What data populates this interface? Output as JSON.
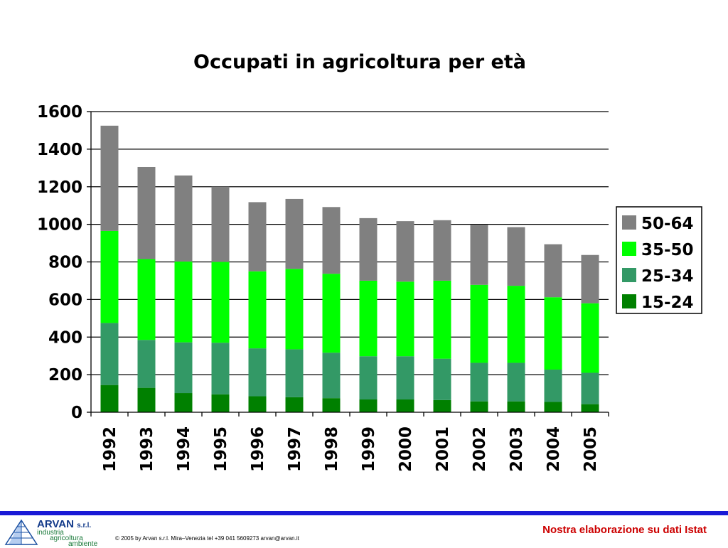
{
  "chart_data": {
    "type": "bar",
    "stacked": true,
    "title": "Occupati in agricoltura per età",
    "categories": [
      "1992",
      "1993",
      "1994",
      "1995",
      "1996",
      "1997",
      "1998",
      "1999",
      "2000",
      "2001",
      "2002",
      "2003",
      "2004",
      "2005"
    ],
    "series": [
      {
        "name": "15-24",
        "color": "#008000",
        "values": [
          145,
          130,
          102,
          95,
          85,
          80,
          75,
          68,
          68,
          65,
          58,
          58,
          55,
          43
        ]
      },
      {
        "name": "25-34",
        "color": "#339966",
        "values": [
          330,
          255,
          270,
          275,
          255,
          255,
          242,
          230,
          230,
          220,
          205,
          205,
          172,
          167
        ]
      },
      {
        "name": "35-50",
        "color": "#00ff00",
        "values": [
          490,
          430,
          430,
          430,
          410,
          428,
          420,
          402,
          397,
          415,
          415,
          410,
          385,
          370
        ]
      },
      {
        "name": "50-64",
        "color": "#808080",
        "values": [
          560,
          490,
          458,
          400,
          368,
          372,
          355,
          333,
          322,
          322,
          320,
          312,
          282,
          257
        ]
      }
    ],
    "ylim": [
      0,
      1600
    ],
    "yticks": [
      0,
      200,
      400,
      600,
      800,
      1000,
      1200,
      1400,
      1600
    ],
    "grid": true,
    "legend": "right"
  },
  "footer": {
    "logo_name": "ARVAN",
    "logo_suffix": "s.r.l.",
    "logo_line1": "industria",
    "logo_line2": "agricoltura",
    "logo_line3": "ambiente",
    "copyright": "© 2005 by Arvan s.r.l. Mira–Venezia tel +39 041 5609273 arvan@arvan.it",
    "source_note": "Nostra elaborazione su dati Istat"
  }
}
